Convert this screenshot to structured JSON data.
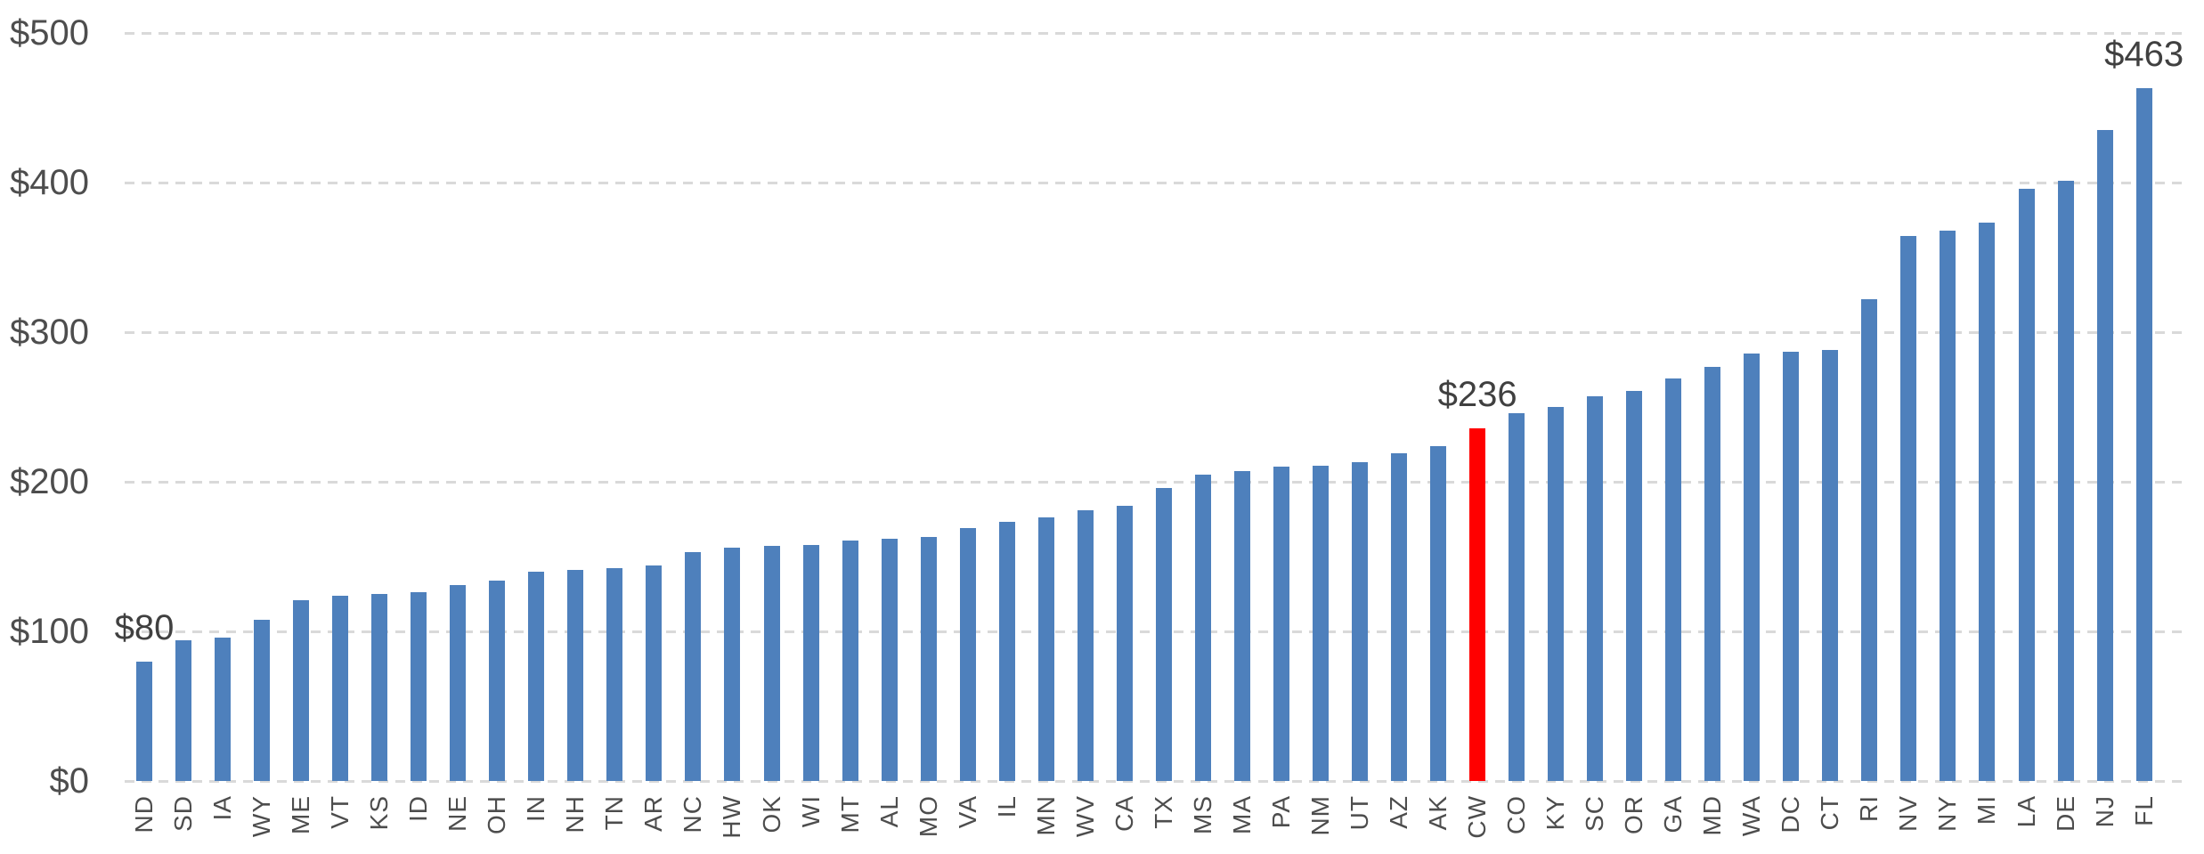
{
  "chart_data": {
    "type": "bar",
    "title": "",
    "xlabel": "",
    "ylabel": "",
    "categories": [
      "ND",
      "SD",
      "IA",
      "WY",
      "ME",
      "VT",
      "KS",
      "ID",
      "NE",
      "OH",
      "IN",
      "NH",
      "TN",
      "AR",
      "NC",
      "HW",
      "OK",
      "WI",
      "MT",
      "AL",
      "MO",
      "VA",
      "IL",
      "MN",
      "WV",
      "CA",
      "TX",
      "MS",
      "MA",
      "PA",
      "NM",
      "UT",
      "AZ",
      "AK",
      "CW",
      "CO",
      "KY",
      "SC",
      "OR",
      "GA",
      "MD",
      "WA",
      "DC",
      "CT",
      "RI",
      "NV",
      "NY",
      "MI",
      "LA",
      "DE",
      "NJ",
      "FL"
    ],
    "values": [
      80,
      94,
      96,
      108,
      121,
      124,
      125,
      126,
      131,
      134,
      140,
      141,
      142,
      144,
      153,
      156,
      157,
      158,
      161,
      162,
      163,
      169,
      173,
      176,
      181,
      184,
      196,
      205,
      207,
      210,
      211,
      213,
      219,
      224,
      236,
      246,
      250,
      257,
      261,
      269,
      277,
      286,
      287,
      288,
      322,
      364,
      368,
      373,
      396,
      401,
      435,
      463
    ],
    "highlight_category": "CW",
    "data_labels": [
      {
        "category": "ND",
        "text": "$80"
      },
      {
        "category": "CW",
        "text": "$236"
      },
      {
        "category": "FL",
        "text": "$463"
      }
    ],
    "y_tick_labels": [
      "$0",
      "$100",
      "$200",
      "$300",
      "$400",
      "$500"
    ],
    "ylim": [
      0,
      500
    ],
    "y_tick_step": 100,
    "grid": "horizontal-dashed",
    "legend": "none",
    "bar_color": "#4E80BC",
    "highlight_color": "#FF0000"
  },
  "colors": {
    "background": "#FFFFFF",
    "gridline": "#D9D9D9",
    "axis_text": "#4D4D4D"
  }
}
